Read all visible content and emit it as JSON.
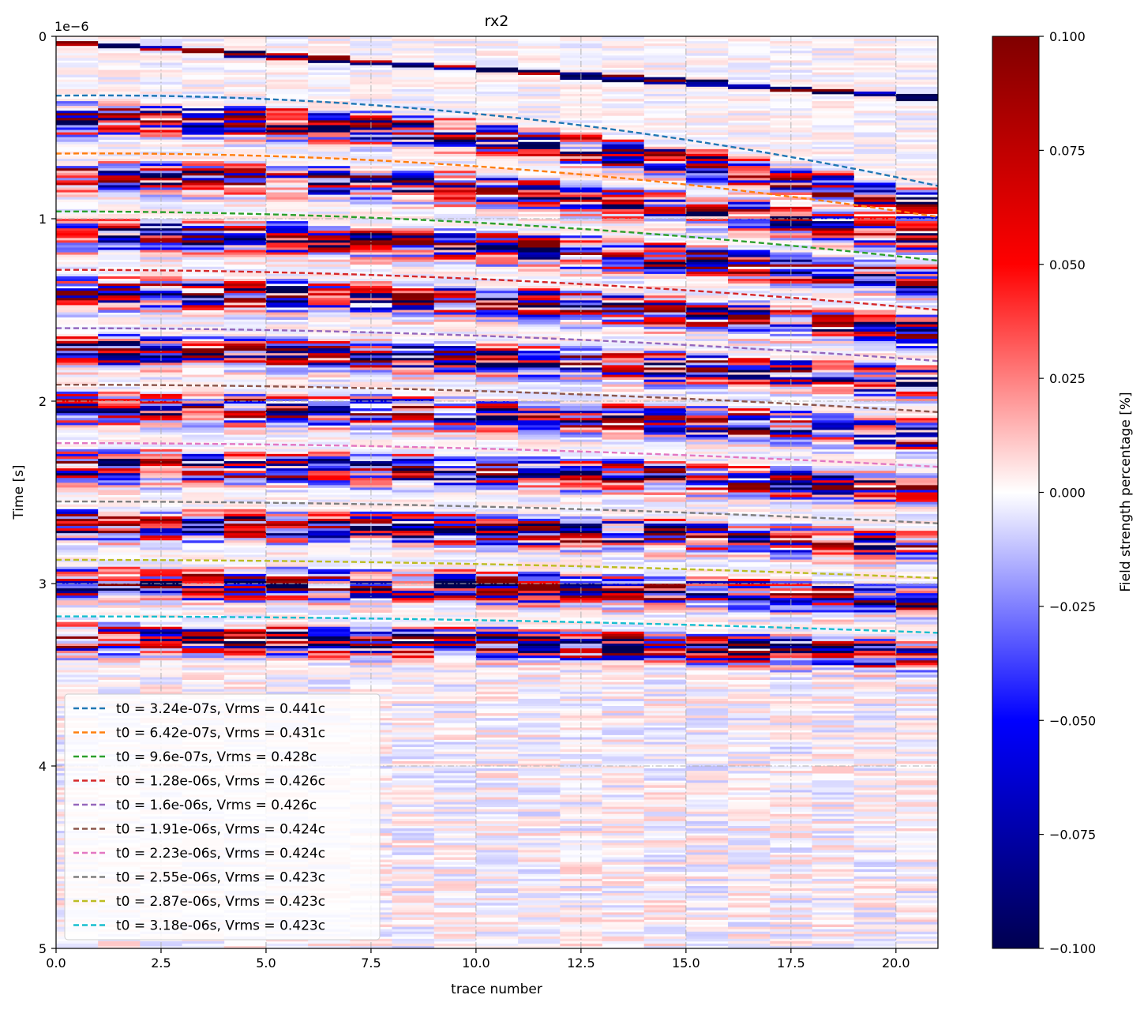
{
  "chart_data": {
    "type": "heatmap",
    "title": "rx2",
    "xlabel": "trace number",
    "ylabel": "Time [s]",
    "y_offset_label": "1e−6",
    "y_scale": 1e-06,
    "xlim": [
      0,
      21
    ],
    "ylim": [
      5,
      0
    ],
    "y_inverted": true,
    "x_ticks": [
      0,
      2.5,
      5,
      7.5,
      10,
      12.5,
      15,
      17.5,
      20
    ],
    "x_tick_labels": [
      "0.0",
      "2.5",
      "5.0",
      "7.5",
      "10.0",
      "12.5",
      "15.0",
      "17.5",
      "20.0"
    ],
    "y_ticks": [
      0,
      1,
      2,
      3,
      4,
      5
    ],
    "y_tick_labels": [
      "0",
      "1",
      "2",
      "3",
      "4",
      "5"
    ],
    "grid": true,
    "grid_style": "dash-dot, light grey",
    "traces": 21,
    "colormap": "seismic",
    "colorbar": {
      "label": "Field strength percentage [%]",
      "vmin": -0.1,
      "vmax": 0.1,
      "ticks": [
        0.1,
        0.075,
        0.05,
        0.025,
        0.0,
        -0.025,
        -0.05,
        -0.075,
        -0.1
      ],
      "tick_labels": [
        "0.100",
        "0.075",
        "0.050",
        "0.025",
        "0.000",
        "−0.025",
        "−0.050",
        "−0.075",
        "−0.100"
      ],
      "colors": [
        "#000050",
        "#0000ff",
        "#ffffff",
        "#ff0000",
        "#800000"
      ]
    },
    "direct_arrival_t0": 0.02,
    "direct_arrival_tmax": 0.33,
    "series": [
      {
        "name": "t0 = 3.24e-07s, Vrms = 0.441c",
        "t0": 0.324,
        "t_end": 0.82,
        "apex": 1.0,
        "color": "#1f77b4"
      },
      {
        "name": "t0 = 6.42e-07s, Vrms = 0.431c",
        "t0": 0.642,
        "t_end": 0.99,
        "apex": 1.0,
        "color": "#ff7f0e"
      },
      {
        "name": "t0 = 9.6e-07s, Vrms = 0.428c",
        "t0": 0.96,
        "t_end": 1.23,
        "apex": 0.0,
        "color": "#2ca02c"
      },
      {
        "name": "t0 = 1.28e-06s, Vrms = 0.426c",
        "t0": 1.28,
        "t_end": 1.5,
        "apex": 0.0,
        "color": "#d62728"
      },
      {
        "name": "t0 = 1.6e-06s, Vrms = 0.426c",
        "t0": 1.6,
        "t_end": 1.78,
        "apex": 0.0,
        "color": "#9467bd"
      },
      {
        "name": "t0 = 1.91e-06s, Vrms = 0.424c",
        "t0": 1.91,
        "t_end": 2.06,
        "apex": 0.0,
        "color": "#8c564b"
      },
      {
        "name": "t0 = 2.23e-06s, Vrms = 0.424c",
        "t0": 2.23,
        "t_end": 2.36,
        "apex": 0.0,
        "color": "#e377c2"
      },
      {
        "name": "t0 = 2.55e-06s, Vrms = 0.423c",
        "t0": 2.55,
        "t_end": 2.67,
        "apex": 0.0,
        "color": "#7f7f7f"
      },
      {
        "name": "t0 = 2.87e-06s, Vrms = 0.423c",
        "t0": 2.87,
        "t_end": 2.97,
        "apex": 0.0,
        "color": "#bcbd22"
      },
      {
        "name": "t0 = 3.18e-06s, Vrms = 0.423c",
        "t0": 3.18,
        "t_end": 3.27,
        "apex": 0.0,
        "color": "#17becf"
      }
    ],
    "legend_placement": "lower-left"
  }
}
